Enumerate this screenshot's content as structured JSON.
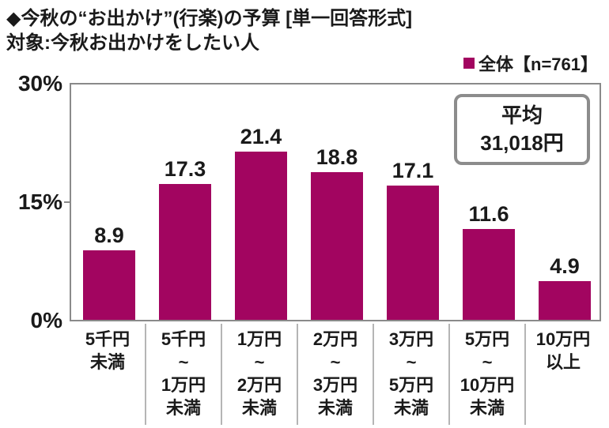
{
  "header": {
    "title": "◆今秋の“お出かけ”(行楽)の予算 [単一回答形式]",
    "subtitle": "対象:今秋お出かけをしたい人"
  },
  "legend": {
    "label": "全体【n=761】"
  },
  "average_box": {
    "title": "平均",
    "value": "31,018円"
  },
  "colors": {
    "bar": "#A20560",
    "axis": "#8A8A8A",
    "divider": "#B5B5B5",
    "box_border": "#8C8C8C"
  },
  "chart_data": {
    "type": "bar",
    "title": "今秋の“お出かけ”(行楽)の予算 [単一回答形式]",
    "subtitle": "対象:今秋お出かけをしたい人",
    "series_name": "全体【n=761】",
    "n": 761,
    "categories": [
      "5千円未満",
      "5千円~1万円未満",
      "1万円~2万円未満",
      "2万円~3万円未満",
      "3万円~5万円未満",
      "5万円~10万円未満",
      "10万円以上"
    ],
    "categories_display": [
      "5千円\n未満",
      "5千円\n~\n1万円\n未満",
      "1万円\n~\n2万円\n未満",
      "2万円\n~\n3万円\n未満",
      "3万円\n~\n5万円\n未満",
      "5万円\n~\n10万円\n未満",
      "10万円\n以上"
    ],
    "values": [
      8.9,
      17.3,
      21.4,
      18.8,
      17.1,
      11.6,
      4.9
    ],
    "unit": "%",
    "ylim": [
      0,
      30
    ],
    "y_ticks": [
      "30%",
      "15%",
      "0%"
    ],
    "annotation": "平均 31,018円",
    "legend_position": "top-right",
    "grid": false
  }
}
